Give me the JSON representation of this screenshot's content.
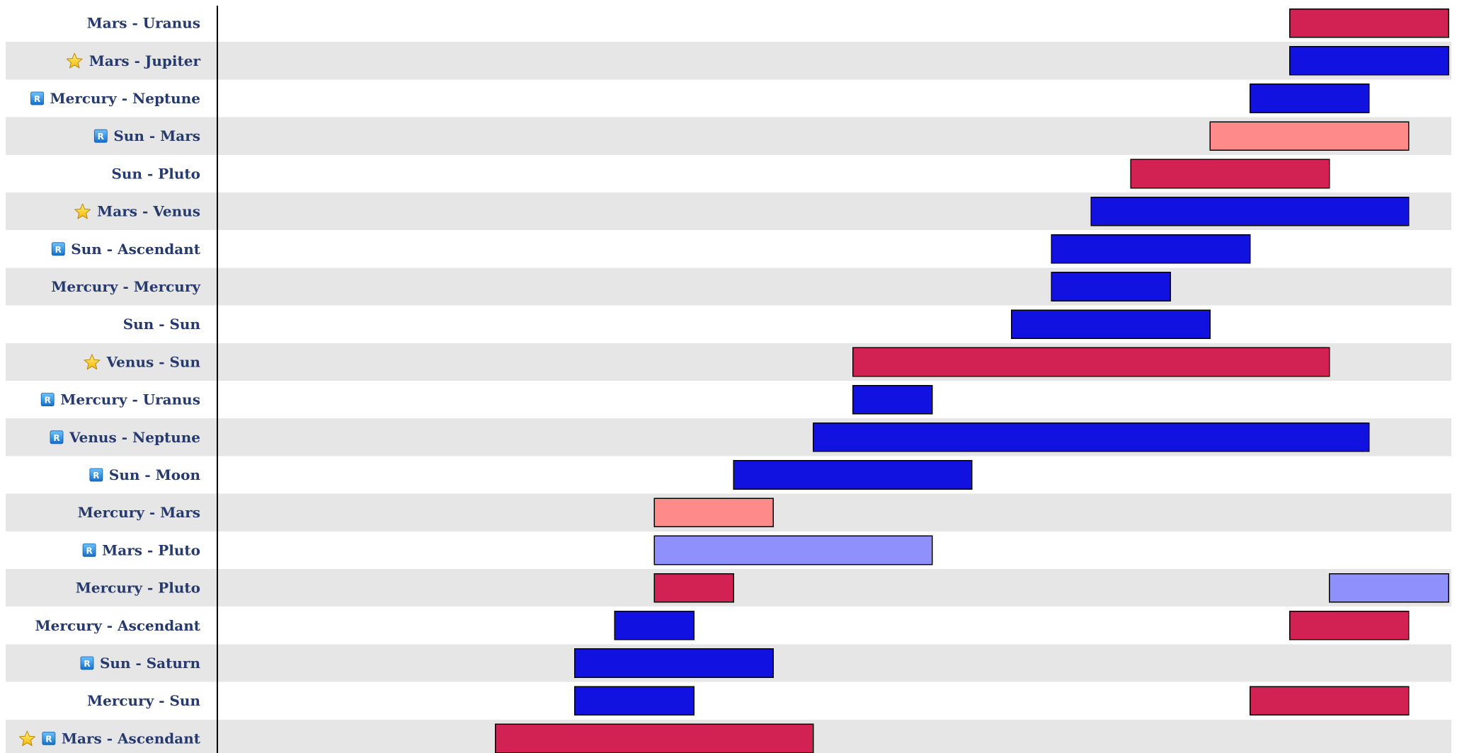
{
  "chart_data": {
    "type": "gantt",
    "rows": [
      {
        "label": "Mars - Uranus",
        "star": false,
        "retro": false,
        "bars": [
          {
            "start": 27,
            "end": 31,
            "color": "#d12253"
          }
        ]
      },
      {
        "label": "Mars - Jupiter",
        "star": true,
        "retro": false,
        "bars": [
          {
            "start": 27,
            "end": 31,
            "color": "#1212e0"
          }
        ]
      },
      {
        "label": "Mercury - Neptune",
        "star": false,
        "retro": true,
        "bars": [
          {
            "start": 26,
            "end": 29,
            "color": "#1212e0"
          }
        ]
      },
      {
        "label": "Sun - Mars",
        "star": false,
        "retro": true,
        "bars": [
          {
            "start": 25,
            "end": 30,
            "color": "#ff8a8a"
          }
        ]
      },
      {
        "label": "Sun - Pluto",
        "star": false,
        "retro": false,
        "bars": [
          {
            "start": 23,
            "end": 28,
            "color": "#d12253"
          }
        ]
      },
      {
        "label": "Mars - Venus",
        "star": true,
        "retro": false,
        "bars": [
          {
            "start": 22,
            "end": 30,
            "color": "#1212e0"
          }
        ]
      },
      {
        "label": "Sun - Ascendant",
        "star": false,
        "retro": true,
        "bars": [
          {
            "start": 21,
            "end": 26,
            "color": "#1212e0"
          }
        ]
      },
      {
        "label": "Mercury - Mercury",
        "star": false,
        "retro": false,
        "bars": [
          {
            "start": 21,
            "end": 24,
            "color": "#1212e0"
          }
        ]
      },
      {
        "label": "Sun - Sun",
        "star": false,
        "retro": false,
        "bars": [
          {
            "start": 20,
            "end": 25,
            "color": "#1212e0"
          }
        ]
      },
      {
        "label": "Venus - Sun",
        "star": true,
        "retro": false,
        "bars": [
          {
            "start": 16,
            "end": 28,
            "color": "#d12253"
          }
        ]
      },
      {
        "label": "Mercury - Uranus",
        "star": false,
        "retro": true,
        "bars": [
          {
            "start": 16,
            "end": 18,
            "color": "#1212e0"
          }
        ]
      },
      {
        "label": "Venus - Neptune",
        "star": false,
        "retro": true,
        "bars": [
          {
            "start": 15,
            "end": 29,
            "color": "#1212e0"
          }
        ]
      },
      {
        "label": "Sun - Moon",
        "star": false,
        "retro": true,
        "bars": [
          {
            "start": 13,
            "end": 19,
            "color": "#1212e0"
          }
        ]
      },
      {
        "label": "Mercury - Mars",
        "star": false,
        "retro": false,
        "bars": [
          {
            "start": 11,
            "end": 14,
            "color": "#ff8a8a"
          }
        ]
      },
      {
        "label": "Mars - Pluto",
        "star": false,
        "retro": true,
        "bars": [
          {
            "start": 11,
            "end": 18,
            "color": "#9090fc"
          }
        ]
      },
      {
        "label": "Mercury - Pluto",
        "star": false,
        "retro": false,
        "bars": [
          {
            "start": 11,
            "end": 13,
            "color": "#d12253"
          },
          {
            "start": 28,
            "end": 31,
            "color": "#9090fc"
          }
        ]
      },
      {
        "label": "Mercury - Ascendant",
        "star": false,
        "retro": false,
        "bars": [
          {
            "start": 10,
            "end": 12,
            "color": "#1212e0"
          },
          {
            "start": 27,
            "end": 30,
            "color": "#d12253"
          }
        ]
      },
      {
        "label": "Sun - Saturn",
        "star": false,
        "retro": true,
        "bars": [
          {
            "start": 9,
            "end": 14,
            "color": "#1212e0"
          }
        ]
      },
      {
        "label": "Mercury - Sun",
        "star": false,
        "retro": false,
        "bars": [
          {
            "start": 9,
            "end": 12,
            "color": "#1212e0"
          },
          {
            "start": 26,
            "end": 30,
            "color": "#d12253"
          }
        ]
      },
      {
        "label": "Mars - Ascendant",
        "star": true,
        "retro": true,
        "bars": [
          {
            "start": 7,
            "end": 15,
            "color": "#d12253"
          }
        ]
      }
    ],
    "xlim": [
      0,
      31
    ],
    "grid": false,
    "row_colors": [
      "#ffffff",
      "#e6e6e6"
    ],
    "label_color": "#263a6e",
    "star_icon": "star-icon",
    "retro_icon": "retrograde-badge-icon",
    "retro_glyph": "R"
  }
}
